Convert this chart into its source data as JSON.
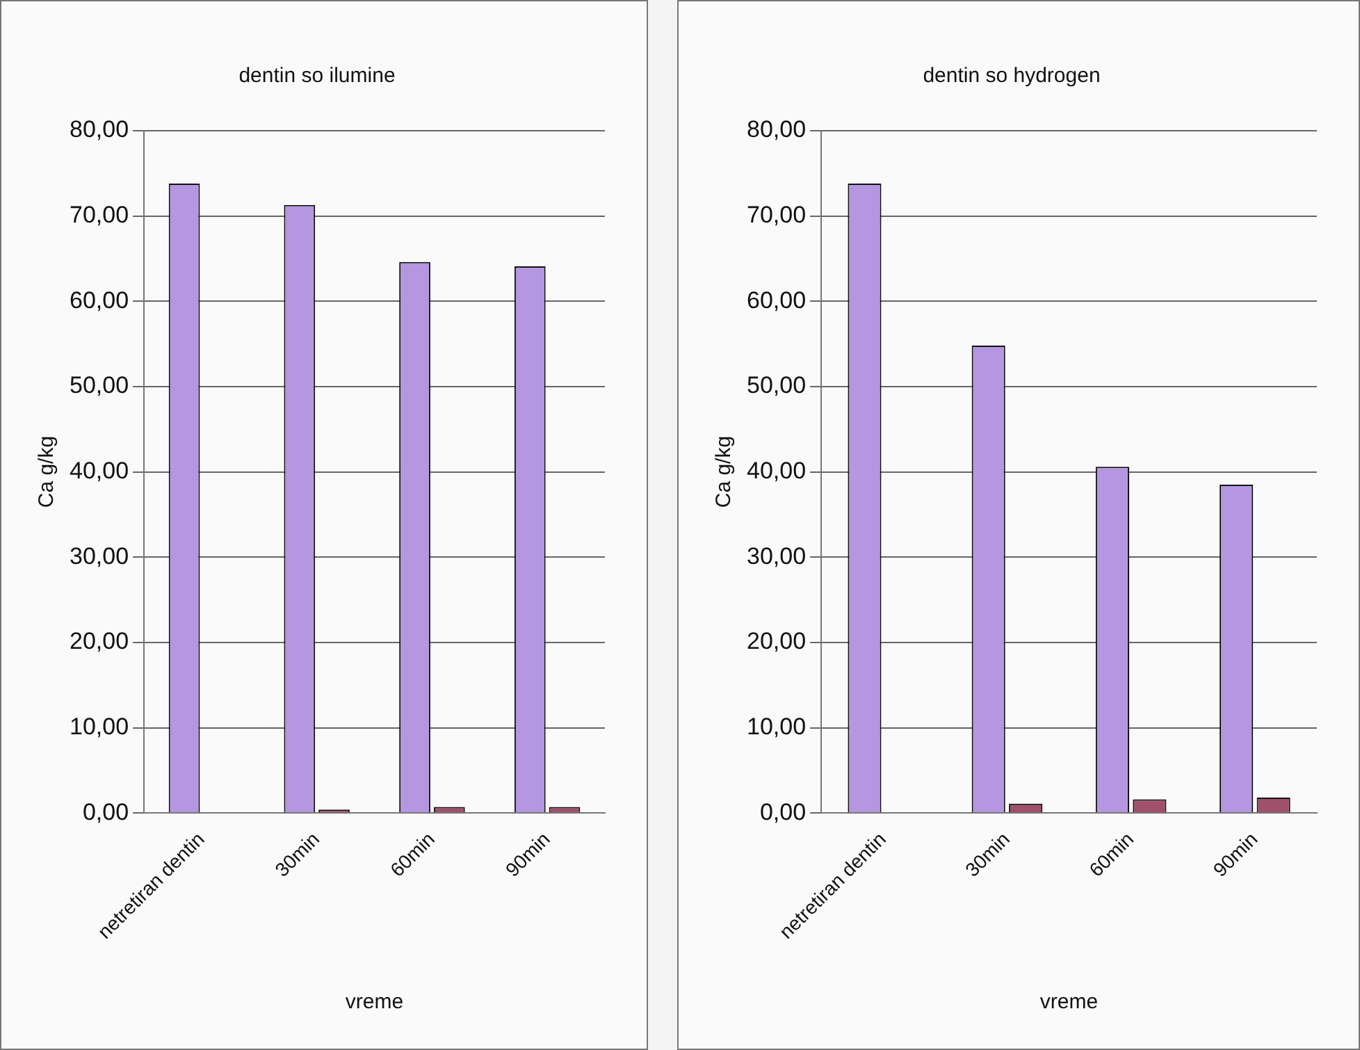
{
  "chart_data": [
    {
      "type": "bar",
      "title": "dentin so ilumine",
      "xlabel": "vreme",
      "ylabel": "Ca g/kg",
      "categories": [
        "netretiran dentin",
        "30min",
        "60min",
        "90min"
      ],
      "series": [
        {
          "color": "#b497e0",
          "values": [
            73.8,
            71.3,
            64.6,
            64.1
          ]
        },
        {
          "color": "#a0506a",
          "values": [
            null,
            0.4,
            0.7,
            0.7
          ]
        }
      ],
      "ylim": [
        0,
        80
      ],
      "yticks": [
        {
          "value": 0,
          "label": "0,00"
        },
        {
          "value": 10,
          "label": "10,00"
        },
        {
          "value": 20,
          "label": "20,00"
        },
        {
          "value": 30,
          "label": "30,00"
        },
        {
          "value": 40,
          "label": "40,00"
        },
        {
          "value": 50,
          "label": "50,00"
        },
        {
          "value": 60,
          "label": "60,00"
        },
        {
          "value": 70,
          "label": "70,00"
        },
        {
          "value": 80,
          "label": "80,00"
        }
      ],
      "grid": "y",
      "legend": false
    },
    {
      "type": "bar",
      "title": "dentin so hydrogen",
      "xlabel": "vreme",
      "ylabel": "Ca g/kg",
      "categories": [
        "netretiran dentin",
        "30min",
        "60min",
        "90min"
      ],
      "series": [
        {
          "color": "#b497e0",
          "values": [
            73.8,
            54.8,
            40.6,
            38.5
          ]
        },
        {
          "color": "#a0506a",
          "values": [
            null,
            1.1,
            1.6,
            1.8
          ]
        }
      ],
      "ylim": [
        0,
        80
      ],
      "yticks": [
        {
          "value": 0,
          "label": "0,00"
        },
        {
          "value": 10,
          "label": "10,00"
        },
        {
          "value": 20,
          "label": "20,00"
        },
        {
          "value": 30,
          "label": "30,00"
        },
        {
          "value": 40,
          "label": "40,00"
        },
        {
          "value": 50,
          "label": "50,00"
        },
        {
          "value": 60,
          "label": "60,00"
        },
        {
          "value": 70,
          "label": "70,00"
        },
        {
          "value": 80,
          "label": "80,00"
        }
      ],
      "grid": "y",
      "legend": false
    }
  ]
}
